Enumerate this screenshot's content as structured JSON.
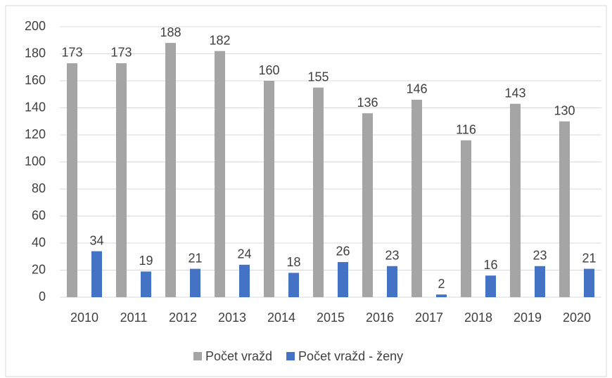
{
  "chart_data": {
    "type": "bar",
    "categories": [
      "2010",
      "2011",
      "2012",
      "2013",
      "2014",
      "2015",
      "2016",
      "2017",
      "2018",
      "2019",
      "2020"
    ],
    "series": [
      {
        "name": "Počet vražd",
        "color": "#a5a5a5",
        "values": [
          173,
          173,
          188,
          182,
          160,
          155,
          136,
          146,
          116,
          143,
          130
        ]
      },
      {
        "name": "Počet vražd - ženy",
        "color": "#4472c4",
        "values": [
          34,
          19,
          21,
          24,
          18,
          26,
          23,
          2,
          16,
          23,
          21
        ]
      }
    ],
    "ylim": [
      0,
      200
    ],
    "yticks": [
      0,
      20,
      40,
      60,
      80,
      100,
      120,
      140,
      160,
      180,
      200
    ],
    "grid": true,
    "legend": "bottom"
  }
}
